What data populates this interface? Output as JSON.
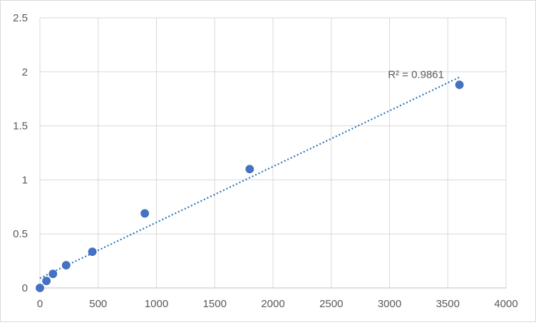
{
  "chart_data": {
    "type": "scatter",
    "title": "",
    "xlabel": "",
    "ylabel": "",
    "xlim": [
      0,
      4000
    ],
    "ylim": [
      0,
      2.5
    ],
    "x_ticks": [
      "0",
      "500",
      "1000",
      "1500",
      "2000",
      "2500",
      "3000",
      "3500",
      "4000"
    ],
    "y_ticks": [
      "0",
      "0.5",
      "1",
      "1.5",
      "2",
      "2.5"
    ],
    "x_tick_values": [
      0,
      500,
      1000,
      1500,
      2000,
      2500,
      3000,
      3500,
      4000
    ],
    "y_tick_values": [
      0,
      0.5,
      1,
      1.5,
      2,
      2.5
    ],
    "grid": true,
    "legend": "none",
    "series": [
      {
        "x": [
          0,
          56,
          112,
          225,
          450,
          900,
          1800,
          3600
        ],
        "y": [
          0.0,
          0.065,
          0.13,
          0.21,
          0.335,
          0.69,
          1.1,
          1.88
        ],
        "color": "#4472c4"
      }
    ],
    "trendline": {
      "type": "linear",
      "style": "dotted",
      "color": "#2e75b6",
      "x_range": [
        0,
        3600
      ],
      "y_range": [
        0.09,
        1.95
      ],
      "r2_label": "R² = 0.9861"
    }
  }
}
